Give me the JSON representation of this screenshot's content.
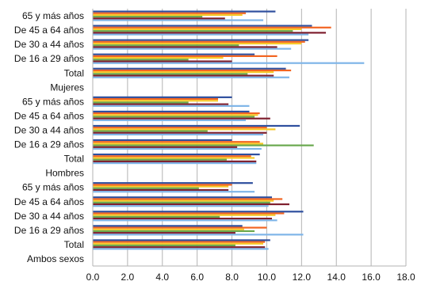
{
  "chart_data": {
    "type": "bar",
    "orientation": "horizontal",
    "xlim": [
      0,
      18
    ],
    "x_ticks": [
      "0.0",
      "2.0",
      "4.0",
      "6.0",
      "8.0",
      "10.0",
      "12.0",
      "14.0",
      "16.0",
      "18.0"
    ],
    "grid": "vertical",
    "legend": "none",
    "bar_colors": [
      "#2e4f9e",
      "#f26522",
      "#f7c829",
      "#6aa84f",
      "#7f1f2e",
      "#7fb5e8"
    ],
    "categories": [
      {
        "label": "65 y más años",
        "values": [
          10.5,
          8.8,
          8.6,
          6.3,
          7.6,
          9.8
        ]
      },
      {
        "label": "De 45 a 64 años",
        "values": [
          12.6,
          13.7,
          12.0,
          11.5,
          13.4,
          12.4
        ]
      },
      {
        "label": "De 30 a 44 años",
        "values": [
          12.4,
          12.2,
          12.0,
          8.4,
          10.6,
          11.4
        ]
      },
      {
        "label": "De 16 a 29 años",
        "values": [
          9.3,
          10.6,
          7.5,
          5.5,
          8.0,
          15.6
        ]
      },
      {
        "label": "Total",
        "values": [
          11.1,
          11.4,
          10.4,
          8.9,
          10.4,
          11.3
        ]
      },
      {
        "label": "Mujeres",
        "values": []
      },
      {
        "label": "65 y más años",
        "values": [
          8.0,
          7.2,
          7.2,
          5.5,
          7.8,
          9.0
        ]
      },
      {
        "label": "De 45 a 64 años",
        "values": [
          9.0,
          9.6,
          9.5,
          9.3,
          10.2,
          8.8
        ]
      },
      {
        "label": "De 30 a 44 años",
        "values": [
          11.9,
          10.0,
          10.5,
          6.6,
          10.0,
          9.8
        ]
      },
      {
        "label": "De 16 a 29 años",
        "values": [
          8.0,
          9.6,
          9.8,
          12.7,
          8.3,
          9.7
        ]
      },
      {
        "label": "Total",
        "values": [
          9.6,
          9.1,
          9.3,
          7.7,
          9.4,
          9.4
        ]
      },
      {
        "label": "Hombres",
        "values": []
      },
      {
        "label": "65 y más años",
        "values": [
          9.2,
          8.0,
          7.8,
          6.1,
          7.8,
          9.3
        ]
      },
      {
        "label": "De 45 a 64 años",
        "values": [
          10.3,
          10.9,
          10.4,
          10.2,
          11.3,
          10.1
        ]
      },
      {
        "label": "De 30 a 44 años",
        "values": [
          12.1,
          11.0,
          10.5,
          7.3,
          10.3,
          10.6
        ]
      },
      {
        "label": "De 16 a 29 años",
        "values": [
          8.6,
          10.0,
          8.7,
          9.3,
          8.2,
          12.1
        ]
      },
      {
        "label": "Total",
        "values": [
          10.2,
          9.9,
          9.8,
          8.2,
          9.9,
          10.1
        ]
      },
      {
        "label": "Ambos sexos",
        "values": []
      }
    ]
  }
}
